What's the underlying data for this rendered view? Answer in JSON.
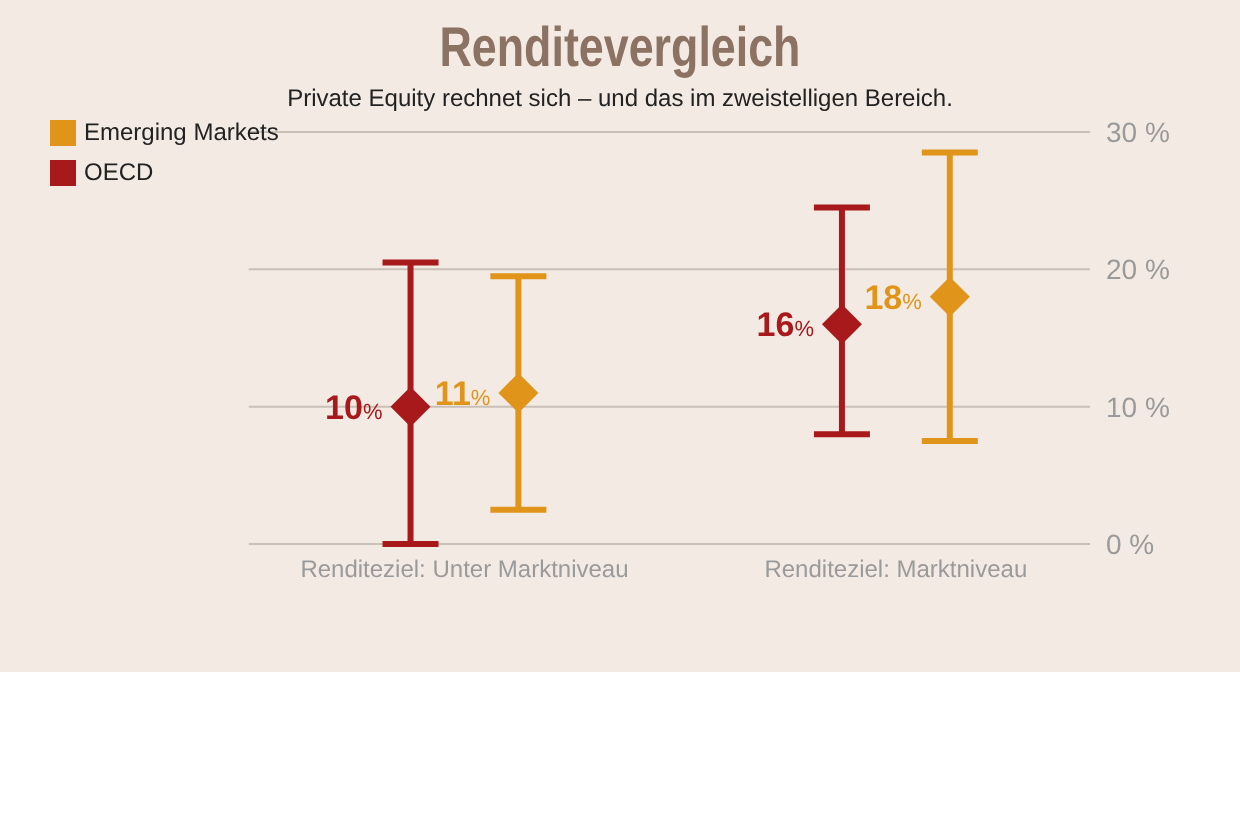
{
  "chart_data": {
    "type": "scatter",
    "title": "Renditevergleich",
    "subtitle": "Private Equity rechnet sich – und das im zweistelligen Bereich.",
    "categories": [
      "Renditeziel: Unter Marktniveau",
      "Renditeziel: Marktniveau"
    ],
    "series": [
      {
        "name": "OECD",
        "color": "#a8191c",
        "values": [
          10,
          16
        ],
        "errors": [
          [
            0,
            20.5
          ],
          [
            8,
            24.5
          ]
        ],
        "value_labels": [
          "10%",
          "16%"
        ]
      },
      {
        "name": "Emerging Markets",
        "color": "#e0951a",
        "values": [
          11,
          18
        ],
        "errors": [
          [
            2.5,
            19.5
          ],
          [
            7.5,
            28.5
          ]
        ],
        "value_labels": [
          "11%",
          "18%"
        ]
      }
    ],
    "ylim": [
      0,
      30
    ],
    "yticks": [
      {
        "value": 0,
        "label": "0 %"
      },
      {
        "value": 10,
        "label": "10 %"
      },
      {
        "value": 20,
        "label": "20 %"
      },
      {
        "value": 30,
        "label": "30 %"
      }
    ],
    "grid": "y",
    "legend": "top left",
    "marker": "diamond"
  }
}
